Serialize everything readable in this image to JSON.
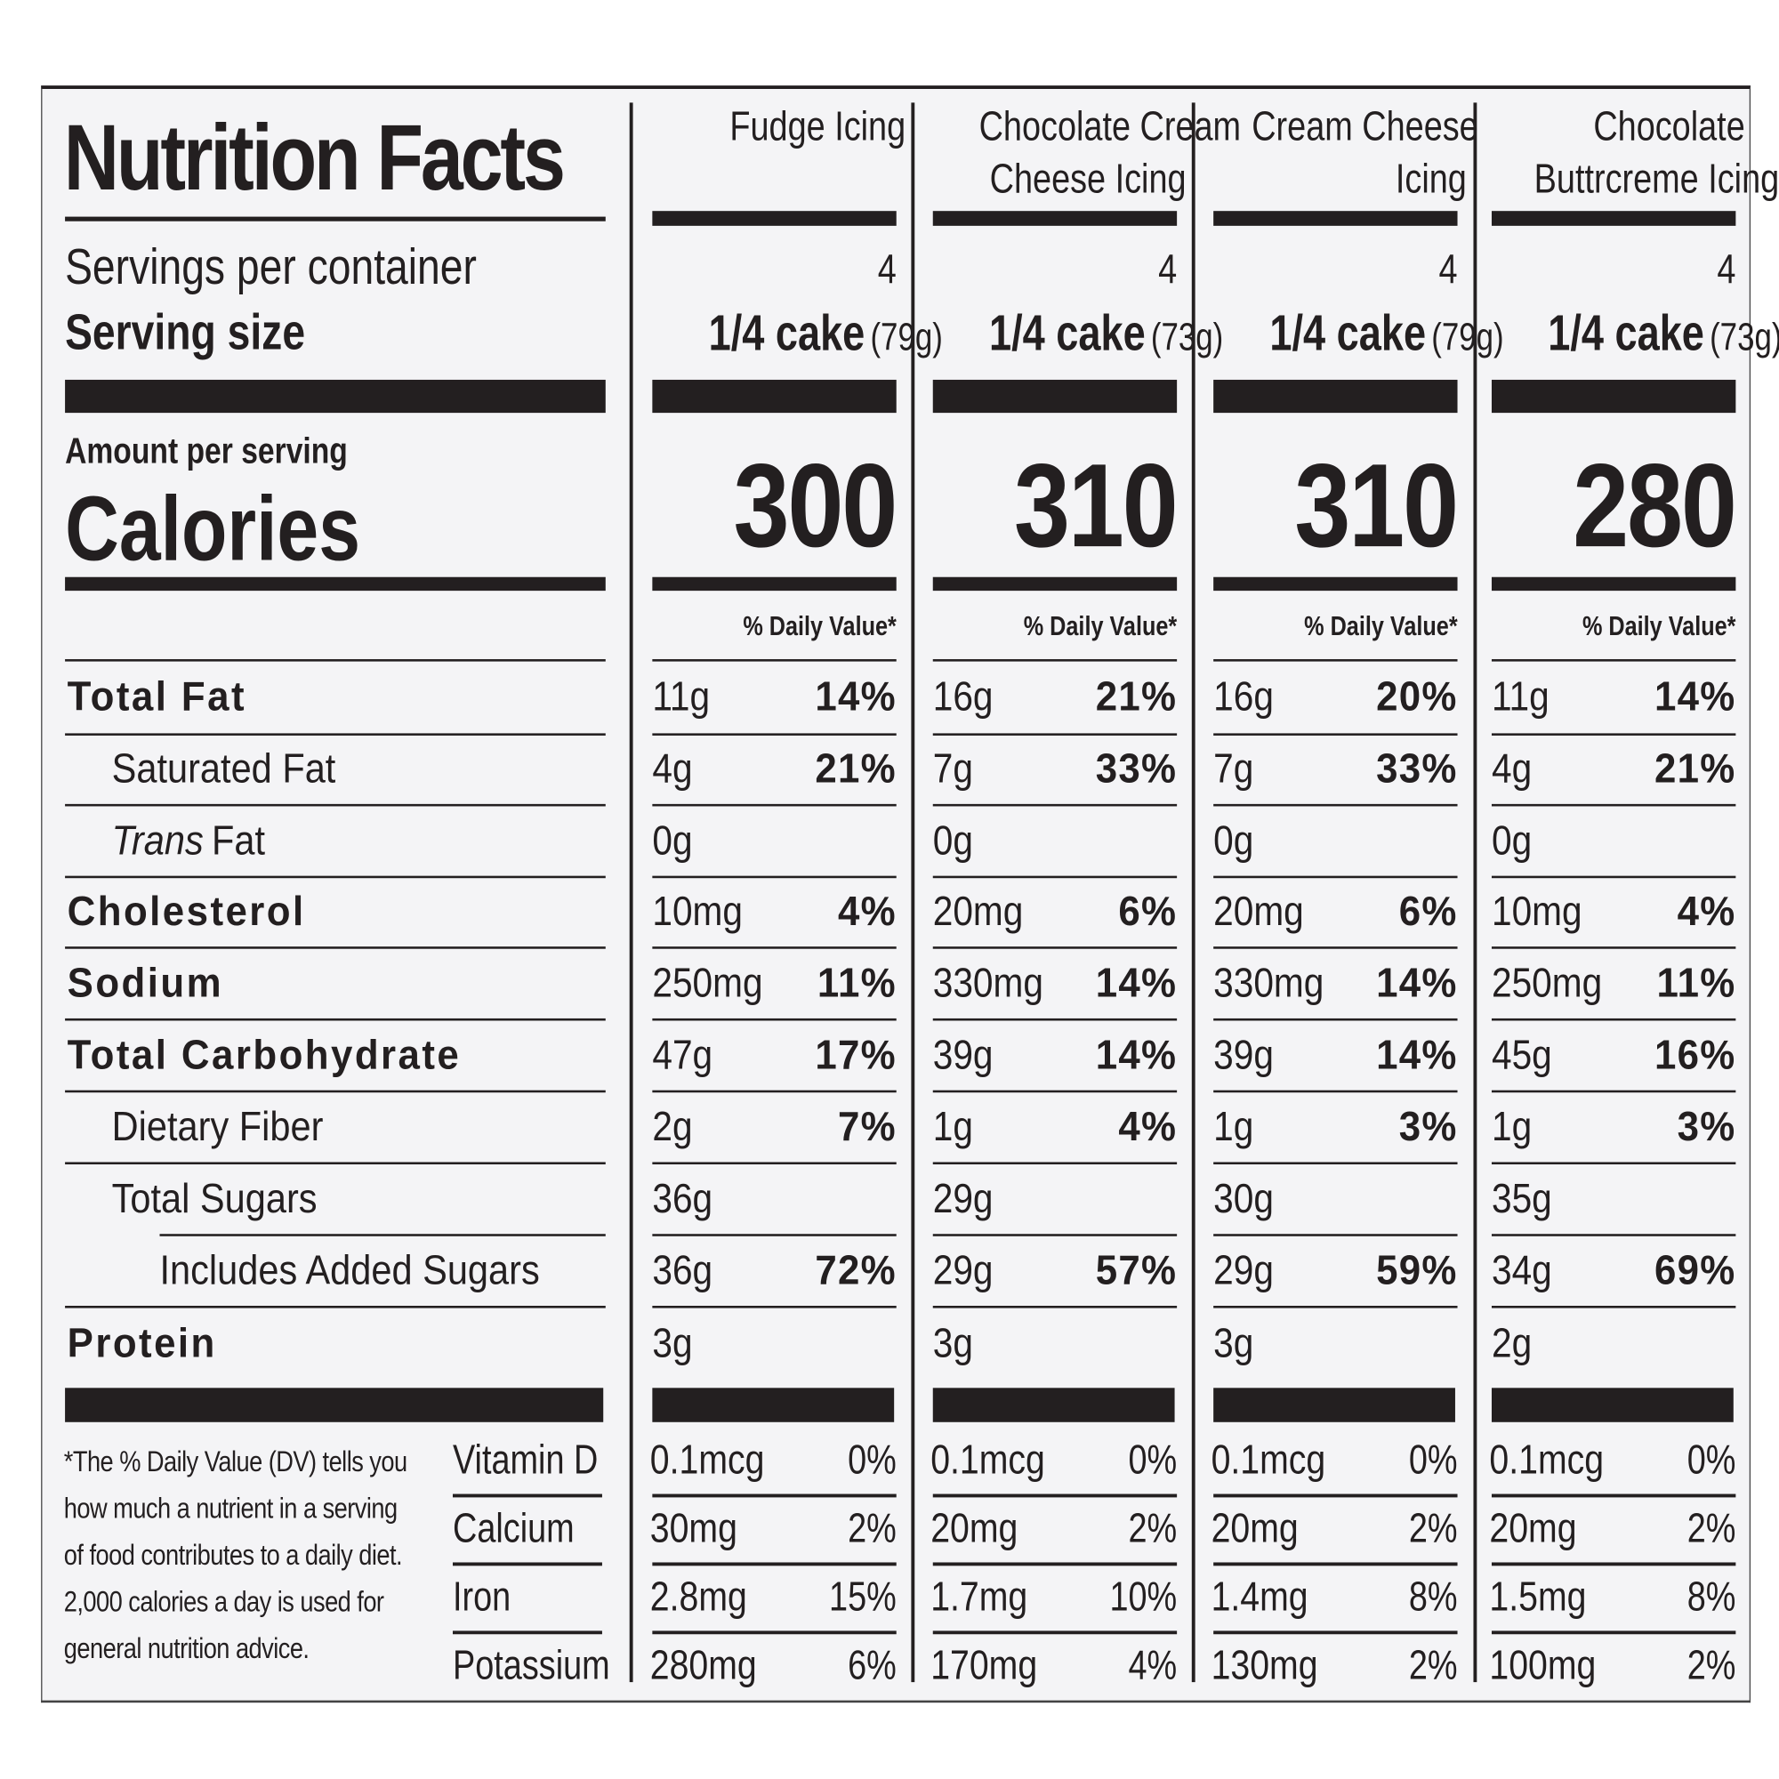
{
  "title": "Nutrition Facts",
  "servings_label": "Servings per container",
  "serving_size_label": "Serving size",
  "amount_per_serving": "Amount per serving",
  "calories_label": "Calories",
  "columns": [
    {
      "name_line1": "Fudge Icing",
      "name_line2": "",
      "servings": "4",
      "serving_main": "1/4 cake",
      "serving_grams": "(79g)",
      "calories": "300",
      "dv_label": "% Daily Value*"
    },
    {
      "name_line1": "Chocolate Cream",
      "name_line2": "Cheese Icing",
      "servings": "4",
      "serving_main": "1/4 cake",
      "serving_grams": "(73g)",
      "calories": "310",
      "dv_label": "% Daily Value*"
    },
    {
      "name_line1": "Cream Cheese",
      "name_line2": "Icing",
      "servings": "4",
      "serving_main": "1/4 cake",
      "serving_grams": "(79g)",
      "calories": "310",
      "dv_label": "% Daily Value*"
    },
    {
      "name_line1": "Chocolate",
      "name_line2": "Buttrcreme Icing",
      "servings": "4",
      "serving_main": "1/4 cake",
      "serving_grams": "(73g)",
      "calories": "280",
      "dv_label": "% Daily Value*"
    }
  ],
  "nutrients": [
    {
      "label": "Total Fat",
      "bold": true,
      "indent": 0,
      "values": [
        {
          "amount": "11g",
          "dv": "14%"
        },
        {
          "amount": "16g",
          "dv": "21%"
        },
        {
          "amount": "16g",
          "dv": "20%"
        },
        {
          "amount": "11g",
          "dv": "14%"
        }
      ]
    },
    {
      "label": "Saturated Fat",
      "bold": false,
      "indent": 1,
      "values": [
        {
          "amount": "4g",
          "dv": "21%"
        },
        {
          "amount": "7g",
          "dv": "33%"
        },
        {
          "amount": "7g",
          "dv": "33%"
        },
        {
          "amount": "4g",
          "dv": "21%"
        }
      ]
    },
    {
      "label_italic": "Trans",
      "label": "Fat",
      "bold": false,
      "indent": 1,
      "values": [
        {
          "amount": "0g",
          "dv": ""
        },
        {
          "amount": "0g",
          "dv": ""
        },
        {
          "amount": "0g",
          "dv": ""
        },
        {
          "amount": "0g",
          "dv": ""
        }
      ]
    },
    {
      "label": "Cholesterol",
      "bold": true,
      "indent": 0,
      "values": [
        {
          "amount": "10mg",
          "dv": "4%"
        },
        {
          "amount": "20mg",
          "dv": "6%"
        },
        {
          "amount": "20mg",
          "dv": "6%"
        },
        {
          "amount": "10mg",
          "dv": "4%"
        }
      ]
    },
    {
      "label": "Sodium",
      "bold": true,
      "indent": 0,
      "values": [
        {
          "amount": "250mg",
          "dv": "11%"
        },
        {
          "amount": "330mg",
          "dv": "14%"
        },
        {
          "amount": "330mg",
          "dv": "14%"
        },
        {
          "amount": "250mg",
          "dv": "11%"
        }
      ]
    },
    {
      "label": "Total Carbohydrate",
      "bold": true,
      "indent": 0,
      "values": [
        {
          "amount": "47g",
          "dv": "17%"
        },
        {
          "amount": "39g",
          "dv": "14%"
        },
        {
          "amount": "39g",
          "dv": "14%"
        },
        {
          "amount": "45g",
          "dv": "16%"
        }
      ]
    },
    {
      "label": "Dietary Fiber",
      "bold": false,
      "indent": 1,
      "values": [
        {
          "amount": "2g",
          "dv": "7%"
        },
        {
          "amount": "1g",
          "dv": "4%"
        },
        {
          "amount": "1g",
          "dv": "3%"
        },
        {
          "amount": "1g",
          "dv": "3%"
        }
      ]
    },
    {
      "label": "Total Sugars",
      "bold": false,
      "indent": 1,
      "values": [
        {
          "amount": "36g",
          "dv": ""
        },
        {
          "amount": "29g",
          "dv": ""
        },
        {
          "amount": "30g",
          "dv": ""
        },
        {
          "amount": "35g",
          "dv": ""
        }
      ]
    },
    {
      "label": "Includes Added Sugars",
      "bold": false,
      "indent": 2,
      "values": [
        {
          "amount": "36g",
          "dv": "72%"
        },
        {
          "amount": "29g",
          "dv": "57%"
        },
        {
          "amount": "29g",
          "dv": "59%"
        },
        {
          "amount": "34g",
          "dv": "69%"
        }
      ]
    },
    {
      "label": "Protein",
      "bold": true,
      "indent": 0,
      "values": [
        {
          "amount": "3g",
          "dv": ""
        },
        {
          "amount": "3g",
          "dv": ""
        },
        {
          "amount": "3g",
          "dv": ""
        },
        {
          "amount": "2g",
          "dv": ""
        }
      ]
    }
  ],
  "vitamins": [
    {
      "label": "Vitamin D",
      "values": [
        {
          "amount": "0.1mcg",
          "dv": "0%"
        },
        {
          "amount": "0.1mcg",
          "dv": "0%"
        },
        {
          "amount": "0.1mcg",
          "dv": "0%"
        },
        {
          "amount": "0.1mcg",
          "dv": "0%"
        }
      ]
    },
    {
      "label": "Calcium",
      "values": [
        {
          "amount": "30mg",
          "dv": "2%"
        },
        {
          "amount": "20mg",
          "dv": "2%"
        },
        {
          "amount": "20mg",
          "dv": "2%"
        },
        {
          "amount": "20mg",
          "dv": "2%"
        }
      ]
    },
    {
      "label": "Iron",
      "values": [
        {
          "amount": "2.8mg",
          "dv": "15%"
        },
        {
          "amount": "1.7mg",
          "dv": "10%"
        },
        {
          "amount": "1.4mg",
          "dv": "8%"
        },
        {
          "amount": "1.5mg",
          "dv": "8%"
        }
      ]
    },
    {
      "label": "Potassium",
      "values": [
        {
          "amount": "280mg",
          "dv": "6%"
        },
        {
          "amount": "170mg",
          "dv": "4%"
        },
        {
          "amount": "130mg",
          "dv": "2%"
        },
        {
          "amount": "100mg",
          "dv": "2%"
        }
      ]
    }
  ],
  "footnote": "*The % Daily Value (DV) tells you how much a nutrient in a serving of food contributes to a daily diet. 2,000 calories a day is used for general nutrition advice."
}
